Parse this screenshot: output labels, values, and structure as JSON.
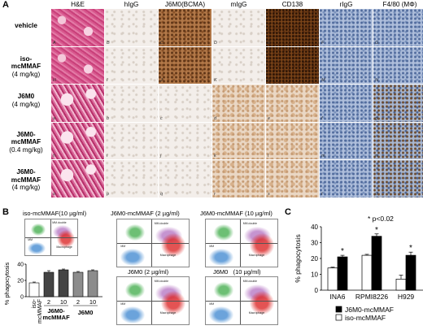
{
  "panel_a": {
    "letter": "A",
    "columns": [
      "H&E",
      "hIgG",
      "J6M0(BCMA)",
      "mIgG",
      "CD138",
      "rIgG",
      "F4/80 (MΦ)"
    ],
    "rows": [
      {
        "title": "vehicle",
        "dose": "",
        "tags": [
          "A",
          "B",
          "C",
          "D",
          "E",
          "F",
          "G"
        ]
      },
      {
        "title": "iso-\nmcMMAF",
        "dose": "(4 mg/kg)",
        "tags": [
          "H",
          "I",
          "J",
          "K",
          "L",
          "M",
          "N"
        ]
      },
      {
        "title": "J6M0",
        "dose": "(4 mg/kg)",
        "tags": [
          "a",
          "b",
          "c",
          "d",
          "e",
          "f",
          "g"
        ]
      },
      {
        "title": "J6M0-\nmcMMAF",
        "dose": "(0.4 mg/kg)",
        "tags": [
          "h",
          "i",
          "j",
          "k",
          "l",
          "m",
          "n"
        ]
      },
      {
        "title": "J6M0-\nmcMMAF",
        "dose": "(4 mg/kg)",
        "tags": [
          "o",
          "p",
          "q",
          "r",
          "s",
          "t",
          "u"
        ]
      }
    ]
  },
  "panel_b": {
    "letter": "B",
    "facs_titles": [
      "iso-mcMMAF(10 µg/ml)",
      "J6M0-mcMMAF (2 µg/ml)",
      "J6M0-mcMMAF (10 µg/ml)",
      "J6M0 (2 µg/ml)",
      "J6M0   (10 µg/ml)"
    ],
    "gate_labels": [
      "MM.double",
      "Macrophage",
      "MM"
    ]
  },
  "panel_c": {
    "letter": "C",
    "significance": "* p<0.02",
    "legend": [
      "J6M0-mcMMAF",
      "iso-mcMMAF"
    ]
  },
  "chart_data": [
    {
      "type": "bar",
      "title": "",
      "xlabel": "",
      "ylabel": "% phagocytosis",
      "ylim": [
        0,
        40
      ],
      "yticks": [
        0,
        20,
        40
      ],
      "categories": [
        "iso-mcMMAF",
        "J6M0-mcMMAF 2",
        "J6M0-mcMMAF 10",
        "J6M0 2",
        "J6M0 10"
      ],
      "category_labels": [
        "iso-\nmcMMAF",
        "2",
        "10",
        "2",
        "10"
      ],
      "group_labels": [
        "J6M0-\nmcMMAF",
        "J6M0"
      ],
      "values": [
        17,
        30,
        33,
        30,
        32
      ],
      "errors": [
        1,
        2,
        1,
        1,
        1
      ],
      "colors": [
        "#ffffff",
        "#444444",
        "#444444",
        "#8c8c8c",
        "#8c8c8c"
      ]
    },
    {
      "type": "bar",
      "title": "",
      "xlabel": "",
      "ylabel": "% phagocytosis",
      "ylim": [
        0,
        40
      ],
      "yticks": [
        0,
        10,
        20,
        30,
        40
      ],
      "categories": [
        "INA6",
        "RPMI8226",
        "H929"
      ],
      "series": [
        {
          "name": "iso-mcMMAF",
          "values": [
            14,
            22,
            7
          ],
          "errors": [
            0.5,
            0.6,
            2.5
          ],
          "color": "#ffffff"
        },
        {
          "name": "J6M0-mcMMAF",
          "values": [
            21,
            34,
            22
          ],
          "errors": [
            1,
            1.5,
            2
          ],
          "color": "#000000"
        }
      ],
      "significant": [
        true,
        true,
        true
      ]
    }
  ]
}
